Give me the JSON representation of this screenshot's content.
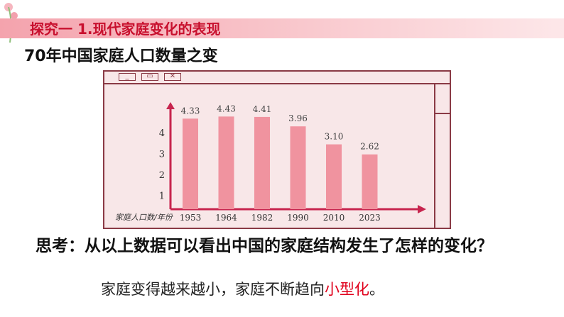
{
  "header": {
    "title": "探究一 1.现代家庭变化的表现"
  },
  "subtitle": "70年中国家庭人口数量之变",
  "window": {
    "buttons": [
      "minimize",
      "restore",
      "close"
    ]
  },
  "chart_data": {
    "type": "bar",
    "title": "",
    "xlabel": "家庭人口数/年份",
    "ylabel": "",
    "categories": [
      "1953",
      "1964",
      "1982",
      "1990",
      "2010",
      "2023"
    ],
    "values": [
      4.33,
      4.43,
      4.41,
      3.96,
      3.1,
      2.62
    ],
    "value_labels": [
      "4.33",
      "4.43",
      "4.41",
      "3.96",
      "3.10",
      "2.62"
    ],
    "yticks": [
      "1",
      "2",
      "3",
      "4"
    ],
    "ylim": [
      0,
      5
    ],
    "bar_color": "#f0939f",
    "axis_color": "#c7254e"
  },
  "question": "思考：从以上数据可以看出中国的家庭结构发生了怎样的变化？",
  "answer": {
    "prefix": "家庭变得越来越小，家庭不断趋向",
    "highlight": "小型化",
    "suffix": "。"
  }
}
